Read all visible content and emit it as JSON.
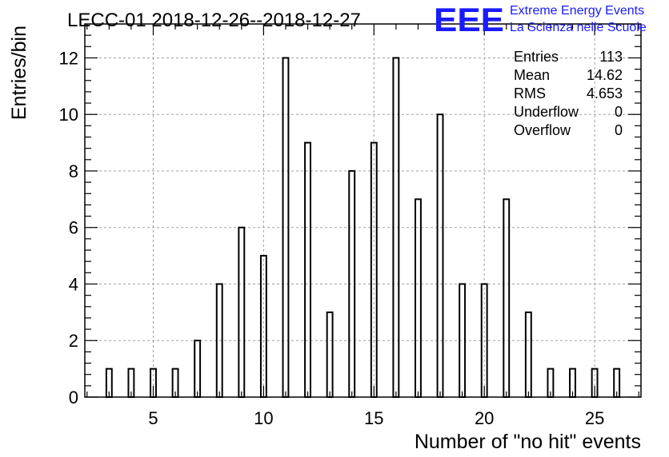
{
  "title": "LECC-01 2018-12-26--2018-12-27",
  "logo": {
    "mark": "EEE",
    "line1": "Extreme Energy Events",
    "line2": "La Scienza nelle Scuole",
    "color": "#1a1aff"
  },
  "stats": {
    "rows": [
      {
        "label": "Entries",
        "value": "113"
      },
      {
        "label": "Mean",
        "value": "14.62"
      },
      {
        "label": "RMS",
        "value": "4.653"
      },
      {
        "label": "Underflow",
        "value": "0"
      },
      {
        "label": "Overflow",
        "value": "0"
      }
    ]
  },
  "chart_data": {
    "type": "bar",
    "title": "LECC-01 2018-12-26--2018-12-27",
    "xlabel": "Number of \"no hit\" events",
    "ylabel": "Entries/bin",
    "xlim": [
      1.9,
      27.1
    ],
    "ylim": [
      0,
      13.2
    ],
    "xticks": [
      5,
      10,
      15,
      20,
      25
    ],
    "yticks": [
      0,
      2,
      4,
      6,
      8,
      10,
      12
    ],
    "grid": true,
    "bin_width": 0.25,
    "x": [
      3,
      4,
      5,
      6,
      7,
      8,
      9,
      10,
      11,
      12,
      13,
      14,
      15,
      16,
      17,
      18,
      19,
      20,
      21,
      22,
      23,
      24,
      25,
      26
    ],
    "values": [
      1,
      1,
      1,
      1,
      2,
      4,
      6,
      5,
      12,
      9,
      3,
      8,
      9,
      12,
      7,
      10,
      4,
      4,
      7,
      3,
      1,
      1,
      1,
      1
    ]
  }
}
